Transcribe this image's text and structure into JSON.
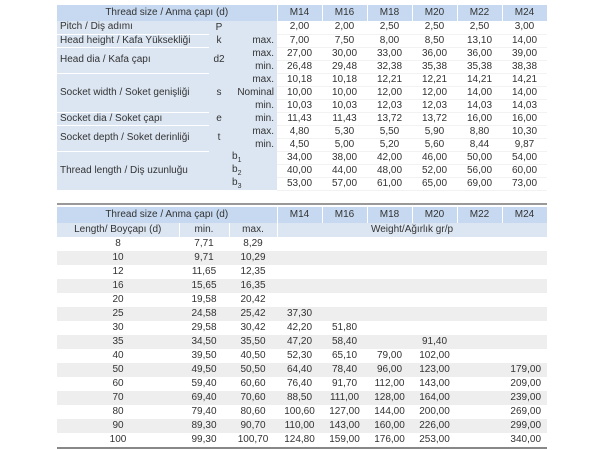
{
  "top": {
    "header": "Thread size / Anma çapı (d)",
    "sizes": [
      "M14",
      "M16",
      "M18",
      "M20",
      "M22",
      "M24"
    ],
    "groups": [
      {
        "label": "Pitch / Diş adımı",
        "symbol": "P",
        "rows": [
          {
            "q": "",
            "values": [
              "2,00",
              "2,00",
              "2,50",
              "2,50",
              "2,50",
              "3,00"
            ]
          }
        ]
      },
      {
        "label": "Head height / Kafa Yüksekliği",
        "symbol": "k",
        "rows": [
          {
            "q": "max.",
            "values": [
              "7,00",
              "7,50",
              "8,00",
              "8,50",
              "13,10",
              "14,00"
            ]
          }
        ]
      },
      {
        "label": "Head dia / Kafa çapı",
        "symbol": "d2",
        "rows": [
          {
            "q": "max.",
            "values": [
              "27,00",
              "30,00",
              "33,00",
              "36,00",
              "36,00",
              "39,00"
            ]
          },
          {
            "q": "min.",
            "values": [
              "26,48",
              "29,48",
              "32,38",
              "35,38",
              "35,38",
              "38,38"
            ]
          }
        ]
      },
      {
        "label": "Socket width / Soket genişliği",
        "symbol": "s",
        "rows": [
          {
            "q": "max.",
            "values": [
              "10,18",
              "10,18",
              "12,21",
              "12,21",
              "14,21",
              "14,21"
            ]
          },
          {
            "q": "Nominal",
            "values": [
              "10,00",
              "10,00",
              "12,00",
              "12,00",
              "14,00",
              "14,00"
            ]
          },
          {
            "q": "min.",
            "values": [
              "10,03",
              "10,03",
              "12,03",
              "12,03",
              "14,03",
              "14,03"
            ]
          }
        ]
      },
      {
        "label": "Socket dia / Soket çapı",
        "symbol": "e",
        "rows": [
          {
            "q": "min.",
            "values": [
              "11,43",
              "11,43",
              "13,72",
              "13,72",
              "16,00",
              "16,00"
            ]
          }
        ]
      },
      {
        "label": "Socket depth / Soket derinliği",
        "symbol": "t",
        "rows": [
          {
            "q": "max.",
            "values": [
              "4,80",
              "5,30",
              "5,50",
              "5,90",
              "8,80",
              "10,30"
            ]
          },
          {
            "q": "min.",
            "values": [
              "4,50",
              "5,00",
              "5,20",
              "5,60",
              "8,44",
              "9,87"
            ]
          }
        ]
      },
      {
        "label": "Thread length / Diş uzunluğu",
        "symbol": "",
        "rows": [
          {
            "q": "b1",
            "values": [
              "34,00",
              "38,00",
              "42,00",
              "46,00",
              "50,00",
              "54,00"
            ]
          },
          {
            "q": "b2",
            "values": [
              "40,00",
              "44,00",
              "48,00",
              "52,00",
              "56,00",
              "60,00"
            ]
          },
          {
            "q": "b3",
            "values": [
              "53,00",
              "57,00",
              "61,00",
              "65,00",
              "69,00",
              "73,00"
            ]
          }
        ]
      }
    ]
  },
  "bottom": {
    "header": "Thread size / Anma çapı (d)",
    "sizes": [
      "M14",
      "M16",
      "M18",
      "M20",
      "M22",
      "M24"
    ],
    "length_label": "Length/ Boyçapı (d)",
    "min_label": "min.",
    "max_label": "max.",
    "weight_label": "Weight/Ağırlık gr/p",
    "rows": [
      [
        "8",
        "7,71",
        "8,29",
        "",
        "",
        "",
        "",
        "",
        ""
      ],
      [
        "10",
        "9,71",
        "10,29",
        "",
        "",
        "",
        "",
        "",
        ""
      ],
      [
        "12",
        "11,65",
        "12,35",
        "",
        "",
        "",
        "",
        "",
        ""
      ],
      [
        "16",
        "15,65",
        "16,35",
        "",
        "",
        "",
        "",
        "",
        ""
      ],
      [
        "20",
        "19,58",
        "20,42",
        "",
        "",
        "",
        "",
        "",
        ""
      ],
      [
        "25",
        "24,58",
        "25,42",
        "37,30",
        "",
        "",
        "",
        "",
        ""
      ],
      [
        "30",
        "29,58",
        "30,42",
        "42,20",
        "51,80",
        "",
        "",
        "",
        ""
      ],
      [
        "35",
        "34,50",
        "35,50",
        "47,20",
        "58,40",
        "",
        "91,40",
        "",
        ""
      ],
      [
        "40",
        "39,50",
        "40,50",
        "52,30",
        "65,10",
        "79,00",
        "102,00",
        "",
        ""
      ],
      [
        "50",
        "49,50",
        "50,50",
        "64,40",
        "78,40",
        "96,00",
        "123,00",
        "",
        "179,00"
      ],
      [
        "60",
        "59,40",
        "60,60",
        "76,40",
        "91,70",
        "112,00",
        "143,00",
        "",
        "209,00"
      ],
      [
        "70",
        "69,40",
        "70,60",
        "88,50",
        "111,00",
        "128,00",
        "164,00",
        "",
        "239,00"
      ],
      [
        "80",
        "79,40",
        "80,60",
        "100,60",
        "127,00",
        "144,00",
        "200,00",
        "",
        "269,00"
      ],
      [
        "90",
        "89,30",
        "90,70",
        "110,00",
        "143,00",
        "160,00",
        "226,00",
        "",
        "299,00"
      ],
      [
        "100",
        "99,30",
        "100,70",
        "124,80",
        "159,00",
        "176,00",
        "253,00",
        "",
        "340,00"
      ]
    ]
  }
}
